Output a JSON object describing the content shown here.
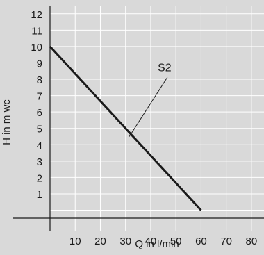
{
  "chart_data": {
    "type": "line",
    "xlabel": "Q in l/min",
    "ylabel": "H in m wc",
    "xlim": [
      0,
      85
    ],
    "ylim": [
      -1.25,
      12.5
    ],
    "x_ticks": [
      10,
      20,
      30,
      40,
      50,
      60,
      70,
      80
    ],
    "y_ticks": [
      1,
      2,
      3,
      4,
      5,
      6,
      7,
      8,
      9,
      10,
      11,
      12
    ],
    "grid": true,
    "series": [
      {
        "name": "S2",
        "x": [
          0,
          60
        ],
        "y": [
          10,
          0
        ]
      }
    ],
    "annotations": [
      {
        "text": "S2",
        "text_at": [
          45.5,
          8.5
        ],
        "points_to": [
          31.5,
          4.5
        ]
      }
    ],
    "colors": {
      "background": "#d9d9d9",
      "grid": "#ffffff",
      "line": "#1a1a1a"
    }
  }
}
